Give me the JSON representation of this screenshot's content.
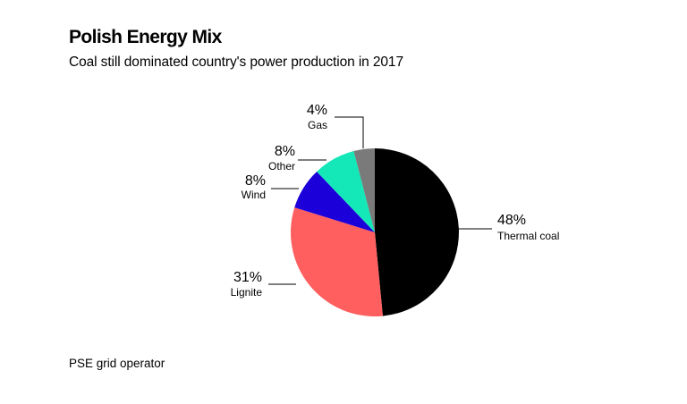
{
  "header": {
    "title": "Polish Energy Mix",
    "subtitle": "Coal still dominated country's power production in 2017"
  },
  "footer": {
    "source": "PSE grid operator"
  },
  "chart_data": {
    "type": "pie",
    "title": "Polish Energy Mix",
    "subtitle": "Coal still dominated country's power production in 2017",
    "unit": "%",
    "slices": [
      {
        "label": "Thermal coal",
        "value": 48,
        "value_label": "48%",
        "color": "#000000"
      },
      {
        "label": "Lignite",
        "value": 31,
        "value_label": "31%",
        "color": "#ff5f5f"
      },
      {
        "label": "Wind",
        "value": 8,
        "value_label": "8%",
        "color": "#1c00d9"
      },
      {
        "label": "Other",
        "value": 8,
        "value_label": "8%",
        "color": "#14e8b8"
      },
      {
        "label": "Gas",
        "value": 4,
        "value_label": "4%",
        "color": "#7a7a7a"
      }
    ]
  }
}
